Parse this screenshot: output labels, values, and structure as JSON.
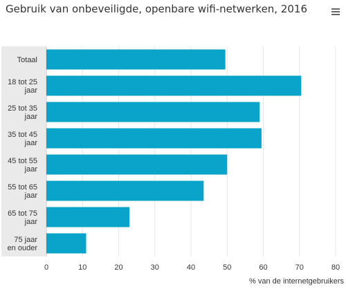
{
  "chart_title": "Gebruik van onbeveiligde, openbare wifi-netwerken, 2016",
  "menu_icon": "hamburger-menu-icon",
  "colors": {
    "bar": "#0aa3c9",
    "category_band": "#eaeaea",
    "grid": "#e6e6e6",
    "axis": "#333333"
  },
  "chart_data": {
    "type": "bar",
    "orientation": "horizontal",
    "title": "Gebruik van onbeveiligde, openbare wifi-netwerken, 2016",
    "categories": [
      "Totaal",
      "18 tot 25 jaar",
      "25 tot 35 jaar",
      "35 tot 45 jaar",
      "45 tot 55 jaar",
      "55 tot 65 jaar",
      "65 tot 75 jaar",
      "75 jaar en ouder"
    ],
    "category_lines": [
      [
        "Totaal"
      ],
      [
        "18 tot 25",
        "jaar"
      ],
      [
        "25 tot 35",
        "jaar"
      ],
      [
        "35 tot 45",
        "jaar"
      ],
      [
        "45 tot 55",
        "jaar"
      ],
      [
        "55 tot 65",
        "jaar"
      ],
      [
        "65 tot 75",
        "jaar"
      ],
      [
        "75 jaar",
        "en ouder"
      ]
    ],
    "values": [
      49.5,
      70.5,
      59,
      59.5,
      50,
      43.5,
      23,
      11
    ],
    "xlabel": "% van de internetgebruikers",
    "ylabel": "",
    "xlim": [
      0,
      80
    ],
    "ticks": [
      0,
      10,
      20,
      30,
      40,
      50,
      60,
      70,
      80
    ],
    "grid": true,
    "legend": "none"
  }
}
